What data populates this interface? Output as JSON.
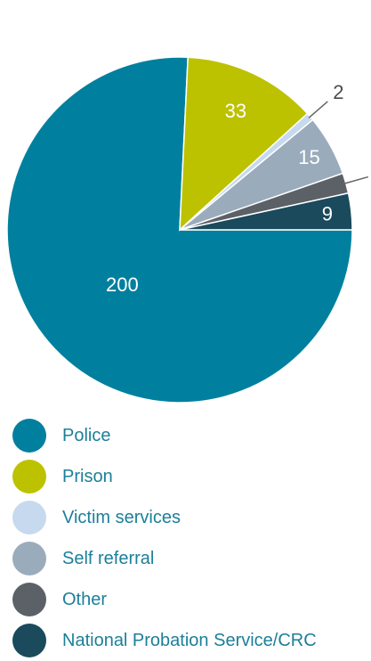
{
  "chart_data": {
    "type": "pie",
    "title": "",
    "categories": [
      "Police",
      "Prison",
      "Victim services",
      "Self referral",
      "Other",
      "National Probation Service/CRC"
    ],
    "values": [
      200,
      33,
      2,
      15,
      5,
      9
    ],
    "colors": [
      "#00809e",
      "#bcc200",
      "#c6d9ef",
      "#9aabbc",
      "#5c6167",
      "#1a4a5c"
    ],
    "legend_position": "bottom-left"
  }
}
